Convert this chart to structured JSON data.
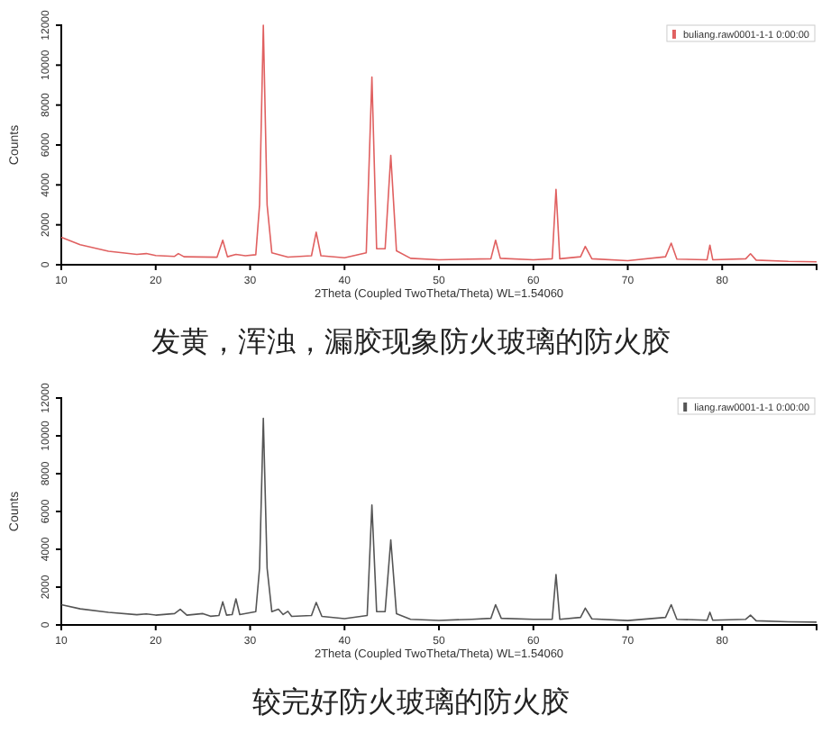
{
  "chart_data": [
    {
      "type": "line",
      "title": "发黄，浑浊，漏胶现象防火玻璃的防火胶",
      "xlabel": "2Theta (Coupled TwoTheta/Theta) WL=1.54060",
      "ylabel": "Counts",
      "xlim": [
        10,
        90
      ],
      "xticks": [
        10,
        20,
        30,
        40,
        50,
        60,
        70,
        80
      ],
      "ylim": [
        0,
        12000
      ],
      "yticks": [
        0,
        2000,
        4000,
        6000,
        8000,
        10000,
        12000
      ],
      "legend": "top right",
      "grid": false,
      "marker": "none",
      "series": [
        {
          "name": "buliang.raw0001-1-1 0:00:00",
          "color": "#e06060",
          "x": [
            10,
            12,
            15,
            18,
            19,
            20,
            22,
            22.4,
            23,
            26.5,
            27.1,
            27.6,
            28.5,
            29.5,
            30.6,
            31.0,
            31.4,
            31.8,
            32.3,
            34,
            36.5,
            37.0,
            37.5,
            40,
            42.3,
            42.9,
            43.4,
            44.3,
            44.9,
            45.5,
            47,
            50,
            55.5,
            56.0,
            56.5,
            60,
            62.0,
            62.4,
            62.8,
            65.0,
            65.5,
            66.2,
            70,
            74.0,
            74.6,
            75.2,
            78.4,
            78.7,
            79.0,
            82.5,
            83.0,
            83.6,
            87,
            90
          ],
          "values": [
            1380,
            1000,
            680,
            520,
            560,
            460,
            420,
            560,
            400,
            380,
            1230,
            400,
            520,
            450,
            500,
            3000,
            12000,
            3000,
            600,
            380,
            450,
            1630,
            450,
            350,
            600,
            9400,
            800,
            800,
            5480,
            700,
            320,
            250,
            300,
            1230,
            320,
            250,
            300,
            3780,
            300,
            400,
            920,
            300,
            200,
            400,
            1080,
            280,
            250,
            980,
            250,
            300,
            550,
            230,
            170,
            150
          ]
        }
      ]
    },
    {
      "type": "line",
      "title": "较完好防火玻璃的防火胶",
      "xlabel": "2Theta (Coupled TwoTheta/Theta) WL=1.54060",
      "ylabel": "Counts",
      "xlim": [
        10,
        90
      ],
      "xticks": [
        10,
        20,
        30,
        40,
        50,
        60,
        70,
        80
      ],
      "ylim": [
        0,
        12000
      ],
      "yticks": [
        0,
        2000,
        4000,
        6000,
        8000,
        10000,
        12000
      ],
      "legend": "top right",
      "grid": false,
      "marker": "none",
      "series": [
        {
          "name": "liang.raw0001-1-1 0:00:00",
          "color": "#555555",
          "x": [
            10,
            12,
            15,
            18,
            19,
            20,
            22,
            22.6,
            23.3,
            25,
            25.8,
            26.7,
            27.1,
            27.5,
            28.1,
            28.5,
            28.9,
            30.6,
            31.0,
            31.4,
            31.8,
            32.3,
            33,
            33.5,
            34,
            34.4,
            36.5,
            37.0,
            37.6,
            40,
            42.4,
            42.9,
            43.4,
            44.3,
            44.9,
            45.5,
            47,
            50,
            53.5,
            55.5,
            56.0,
            56.6,
            60,
            62.0,
            62.4,
            62.8,
            65,
            65.5,
            66.2,
            70,
            74,
            74.6,
            75.2,
            78.4,
            78.7,
            79,
            82.5,
            83,
            83.6,
            87,
            90
          ],
          "values": [
            1070,
            850,
            670,
            540,
            580,
            520,
            600,
            830,
            520,
            600,
            460,
            500,
            1220,
            520,
            550,
            1380,
            550,
            700,
            3000,
            10930,
            3000,
            700,
            830,
            550,
            720,
            450,
            500,
            1190,
            450,
            330,
            500,
            6340,
            700,
            700,
            4500,
            600,
            300,
            240,
            300,
            350,
            1070,
            350,
            300,
            300,
            2660,
            300,
            400,
            890,
            320,
            230,
            400,
            1070,
            300,
            250,
            670,
            250,
            300,
            520,
            220,
            170,
            150
          ]
        }
      ]
    }
  ]
}
